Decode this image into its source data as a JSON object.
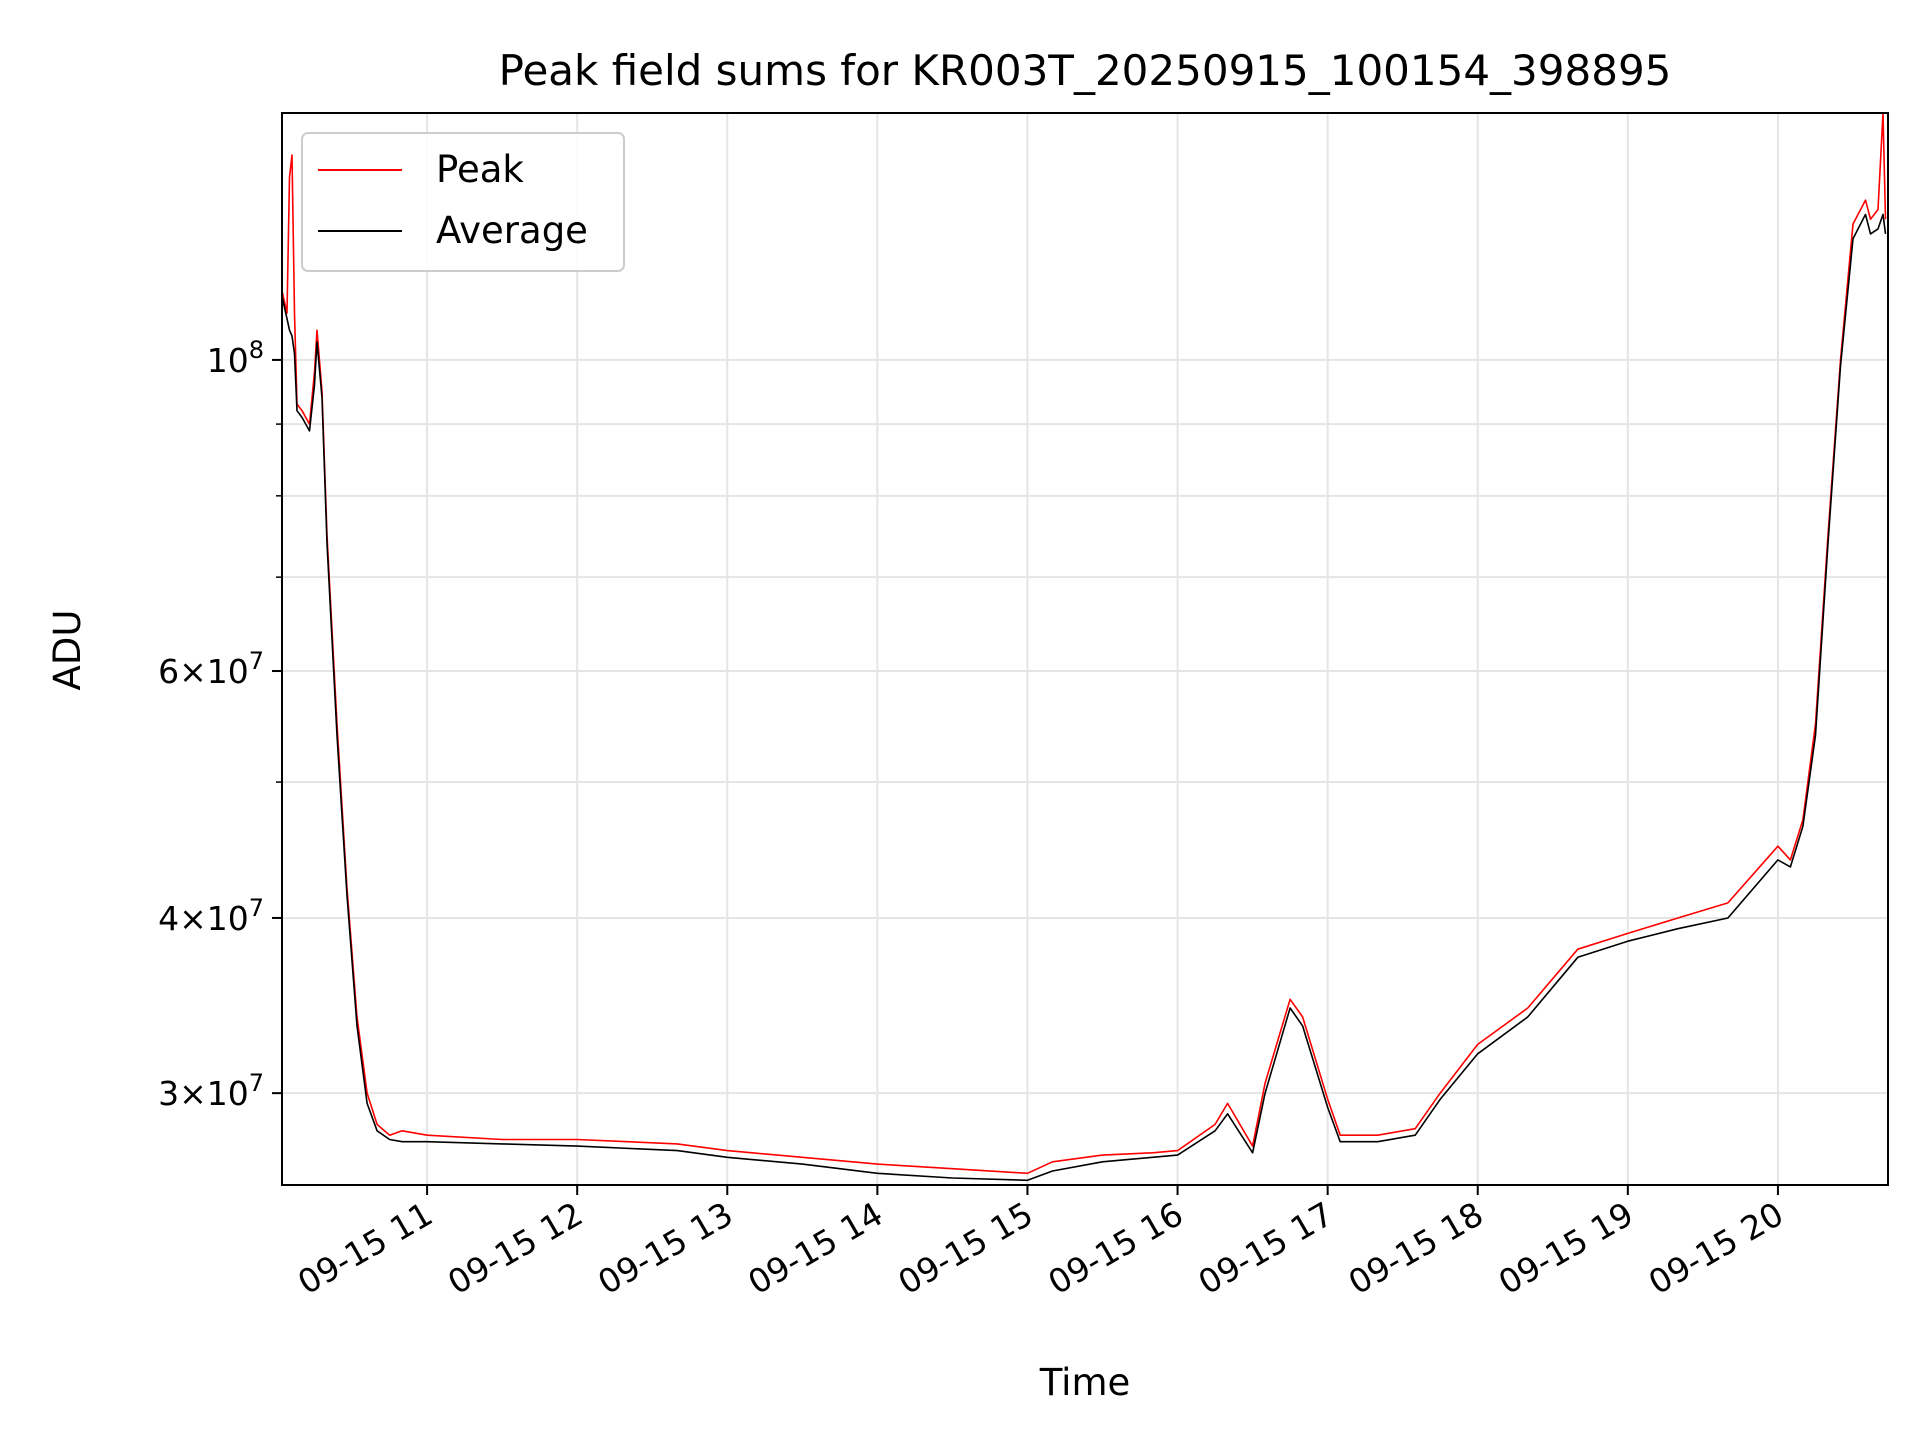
{
  "chart_data": {
    "type": "line",
    "title": "Peak field sums for KR003T_20250915_100154_398895",
    "xlabel": "Time",
    "ylabel": "ADU",
    "y_scale": "log",
    "ylim": [
      25800000,
      150000000
    ],
    "xlim": [
      "2025-09-15 10:02",
      "2025-09-15 20:44"
    ],
    "grid": true,
    "legend": {
      "position": "upper left",
      "entries": [
        "Peak",
        "Average"
      ]
    },
    "x_ticks": [
      {
        "t": "2025-09-15 11:00",
        "label": "09-15 11"
      },
      {
        "t": "2025-09-15 12:00",
        "label": "09-15 12"
      },
      {
        "t": "2025-09-15 13:00",
        "label": "09-15 13"
      },
      {
        "t": "2025-09-15 14:00",
        "label": "09-15 14"
      },
      {
        "t": "2025-09-15 15:00",
        "label": "09-15 15"
      },
      {
        "t": "2025-09-15 16:00",
        "label": "09-15 16"
      },
      {
        "t": "2025-09-15 17:00",
        "label": "09-15 17"
      },
      {
        "t": "2025-09-15 18:00",
        "label": "09-15 18"
      },
      {
        "t": "2025-09-15 19:00",
        "label": "09-15 19"
      },
      {
        "t": "2025-09-15 20:00",
        "label": "09-15 20"
      }
    ],
    "y_major_ticks": [
      {
        "v": 100000000,
        "base": "10",
        "exp": "8"
      },
      {
        "v": 60000000,
        "coef": "6",
        "base": "10",
        "exp": "7"
      },
      {
        "v": 40000000,
        "coef": "4",
        "base": "10",
        "exp": "7"
      },
      {
        "v": 30000000,
        "coef": "3",
        "base": "10",
        "exp": "7"
      }
    ],
    "y_minor_ticks": [
      50000000,
      70000000,
      80000000,
      90000000
    ],
    "series": [
      {
        "name": "Peak",
        "color": "#ff0000",
        "x": [
          "2025-09-15 10:02",
          "2025-09-15 10:04",
          "2025-09-15 10:05",
          "2025-09-15 10:06",
          "2025-09-15 10:07",
          "2025-09-15 10:08",
          "2025-09-15 10:10",
          "2025-09-15 10:13",
          "2025-09-15 10:15",
          "2025-09-15 10:16",
          "2025-09-15 10:18",
          "2025-09-15 10:20",
          "2025-09-15 10:24",
          "2025-09-15 10:28",
          "2025-09-15 10:32",
          "2025-09-15 10:36",
          "2025-09-15 10:40",
          "2025-09-15 10:45",
          "2025-09-15 10:50",
          "2025-09-15 11:00",
          "2025-09-15 11:30",
          "2025-09-15 12:00",
          "2025-09-15 12:40",
          "2025-09-15 13:00",
          "2025-09-15 13:30",
          "2025-09-15 14:00",
          "2025-09-15 14:30",
          "2025-09-15 15:00",
          "2025-09-15 15:10",
          "2025-09-15 15:30",
          "2025-09-15 15:50",
          "2025-09-15 16:00",
          "2025-09-15 16:15",
          "2025-09-15 16:20",
          "2025-09-15 16:30",
          "2025-09-15 16:35",
          "2025-09-15 16:45",
          "2025-09-15 16:50",
          "2025-09-15 17:00",
          "2025-09-15 17:05",
          "2025-09-15 17:20",
          "2025-09-15 17:35",
          "2025-09-15 17:45",
          "2025-09-15 18:00",
          "2025-09-15 18:20",
          "2025-09-15 18:40",
          "2025-09-15 19:00",
          "2025-09-15 19:20",
          "2025-09-15 19:40",
          "2025-09-15 20:00",
          "2025-09-15 20:05",
          "2025-09-15 20:10",
          "2025-09-15 20:15",
          "2025-09-15 20:20",
          "2025-09-15 20:25",
          "2025-09-15 20:30",
          "2025-09-15 20:35",
          "2025-09-15 20:37",
          "2025-09-15 20:40",
          "2025-09-15 20:42",
          "2025-09-15 20:43"
        ],
        "y": [
          112000000,
          108000000,
          135000000,
          140000000,
          108000000,
          93000000,
          92000000,
          90000000,
          98000000,
          105000000,
          95000000,
          75000000,
          55000000,
          42000000,
          34000000,
          30000000,
          28500000,
          28000000,
          28200000,
          28000000,
          27800000,
          27800000,
          27600000,
          27300000,
          27000000,
          26700000,
          26500000,
          26300000,
          26800000,
          27100000,
          27200000,
          27300000,
          28500000,
          29500000,
          27500000,
          30500000,
          35000000,
          34000000,
          29700000,
          28000000,
          28000000,
          28300000,
          30000000,
          32500000,
          34500000,
          38000000,
          39000000,
          40000000,
          41000000,
          45000000,
          44000000,
          47000000,
          55000000,
          75000000,
          100000000,
          125000000,
          130000000,
          126000000,
          128000000,
          150000000,
          126000000
        ]
      },
      {
        "name": "Average",
        "color": "#000000",
        "x": [
          "2025-09-15 10:02",
          "2025-09-15 10:04",
          "2025-09-15 10:05",
          "2025-09-15 10:06",
          "2025-09-15 10:07",
          "2025-09-15 10:08",
          "2025-09-15 10:10",
          "2025-09-15 10:13",
          "2025-09-15 10:15",
          "2025-09-15 10:16",
          "2025-09-15 10:18",
          "2025-09-15 10:20",
          "2025-09-15 10:24",
          "2025-09-15 10:28",
          "2025-09-15 10:32",
          "2025-09-15 10:36",
          "2025-09-15 10:40",
          "2025-09-15 10:45",
          "2025-09-15 10:50",
          "2025-09-15 11:00",
          "2025-09-15 11:30",
          "2025-09-15 12:00",
          "2025-09-15 12:40",
          "2025-09-15 13:00",
          "2025-09-15 13:30",
          "2025-09-15 14:00",
          "2025-09-15 14:30",
          "2025-09-15 15:00",
          "2025-09-15 15:10",
          "2025-09-15 15:30",
          "2025-09-15 15:50",
          "2025-09-15 16:00",
          "2025-09-15 16:15",
          "2025-09-15 16:20",
          "2025-09-15 16:30",
          "2025-09-15 16:35",
          "2025-09-15 16:45",
          "2025-09-15 16:50",
          "2025-09-15 17:00",
          "2025-09-15 17:05",
          "2025-09-15 17:20",
          "2025-09-15 17:35",
          "2025-09-15 17:45",
          "2025-09-15 18:00",
          "2025-09-15 18:20",
          "2025-09-15 18:40",
          "2025-09-15 19:00",
          "2025-09-15 19:20",
          "2025-09-15 19:40",
          "2025-09-15 20:00",
          "2025-09-15 20:05",
          "2025-09-15 20:10",
          "2025-09-15 20:15",
          "2025-09-15 20:20",
          "2025-09-15 20:25",
          "2025-09-15 20:30",
          "2025-09-15 20:35",
          "2025-09-15 20:37",
          "2025-09-15 20:40",
          "2025-09-15 20:42",
          "2025-09-15 20:43"
        ],
        "y": [
          111000000,
          107000000,
          105000000,
          104000000,
          101000000,
          92000000,
          91000000,
          89000000,
          96000000,
          103000000,
          94000000,
          74000000,
          54000000,
          41500000,
          33500000,
          29500000,
          28200000,
          27800000,
          27700000,
          27700000,
          27600000,
          27500000,
          27300000,
          27000000,
          26700000,
          26300000,
          26100000,
          26000000,
          26400000,
          26800000,
          27000000,
          27100000,
          28200000,
          29000000,
          27200000,
          30000000,
          34500000,
          33500000,
          29300000,
          27700000,
          27700000,
          28000000,
          29700000,
          32000000,
          34000000,
          37500000,
          38500000,
          39300000,
          40000000,
          44000000,
          43500000,
          46500000,
          54000000,
          74000000,
          99000000,
          122000000,
          127000000,
          123000000,
          124000000,
          127000000,
          123000000
        ]
      }
    ]
  }
}
